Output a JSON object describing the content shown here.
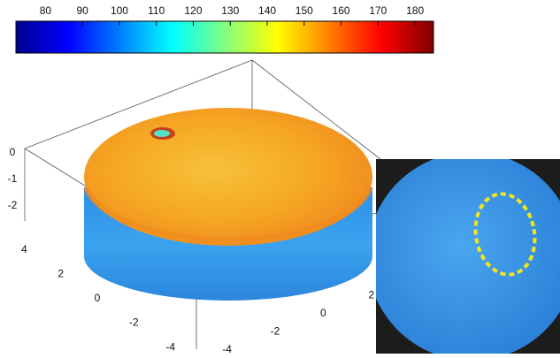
{
  "chart_data": {
    "type": "surface3d",
    "colorbar": {
      "clim": [
        72,
        185
      ],
      "ticks": [
        80,
        90,
        100,
        110,
        120,
        130,
        140,
        150,
        160,
        170,
        180
      ]
    },
    "xlim": [
      -4.5,
      3
    ],
    "xticks": [
      2,
      0,
      -2,
      -4
    ],
    "ylim": [
      -4.5,
      4.5
    ],
    "yticks": [
      4,
      2,
      0,
      -2,
      -4
    ],
    "zlim": [
      -3,
      0.5
    ],
    "zticks": [
      0,
      -1,
      -2
    ]
  }
}
